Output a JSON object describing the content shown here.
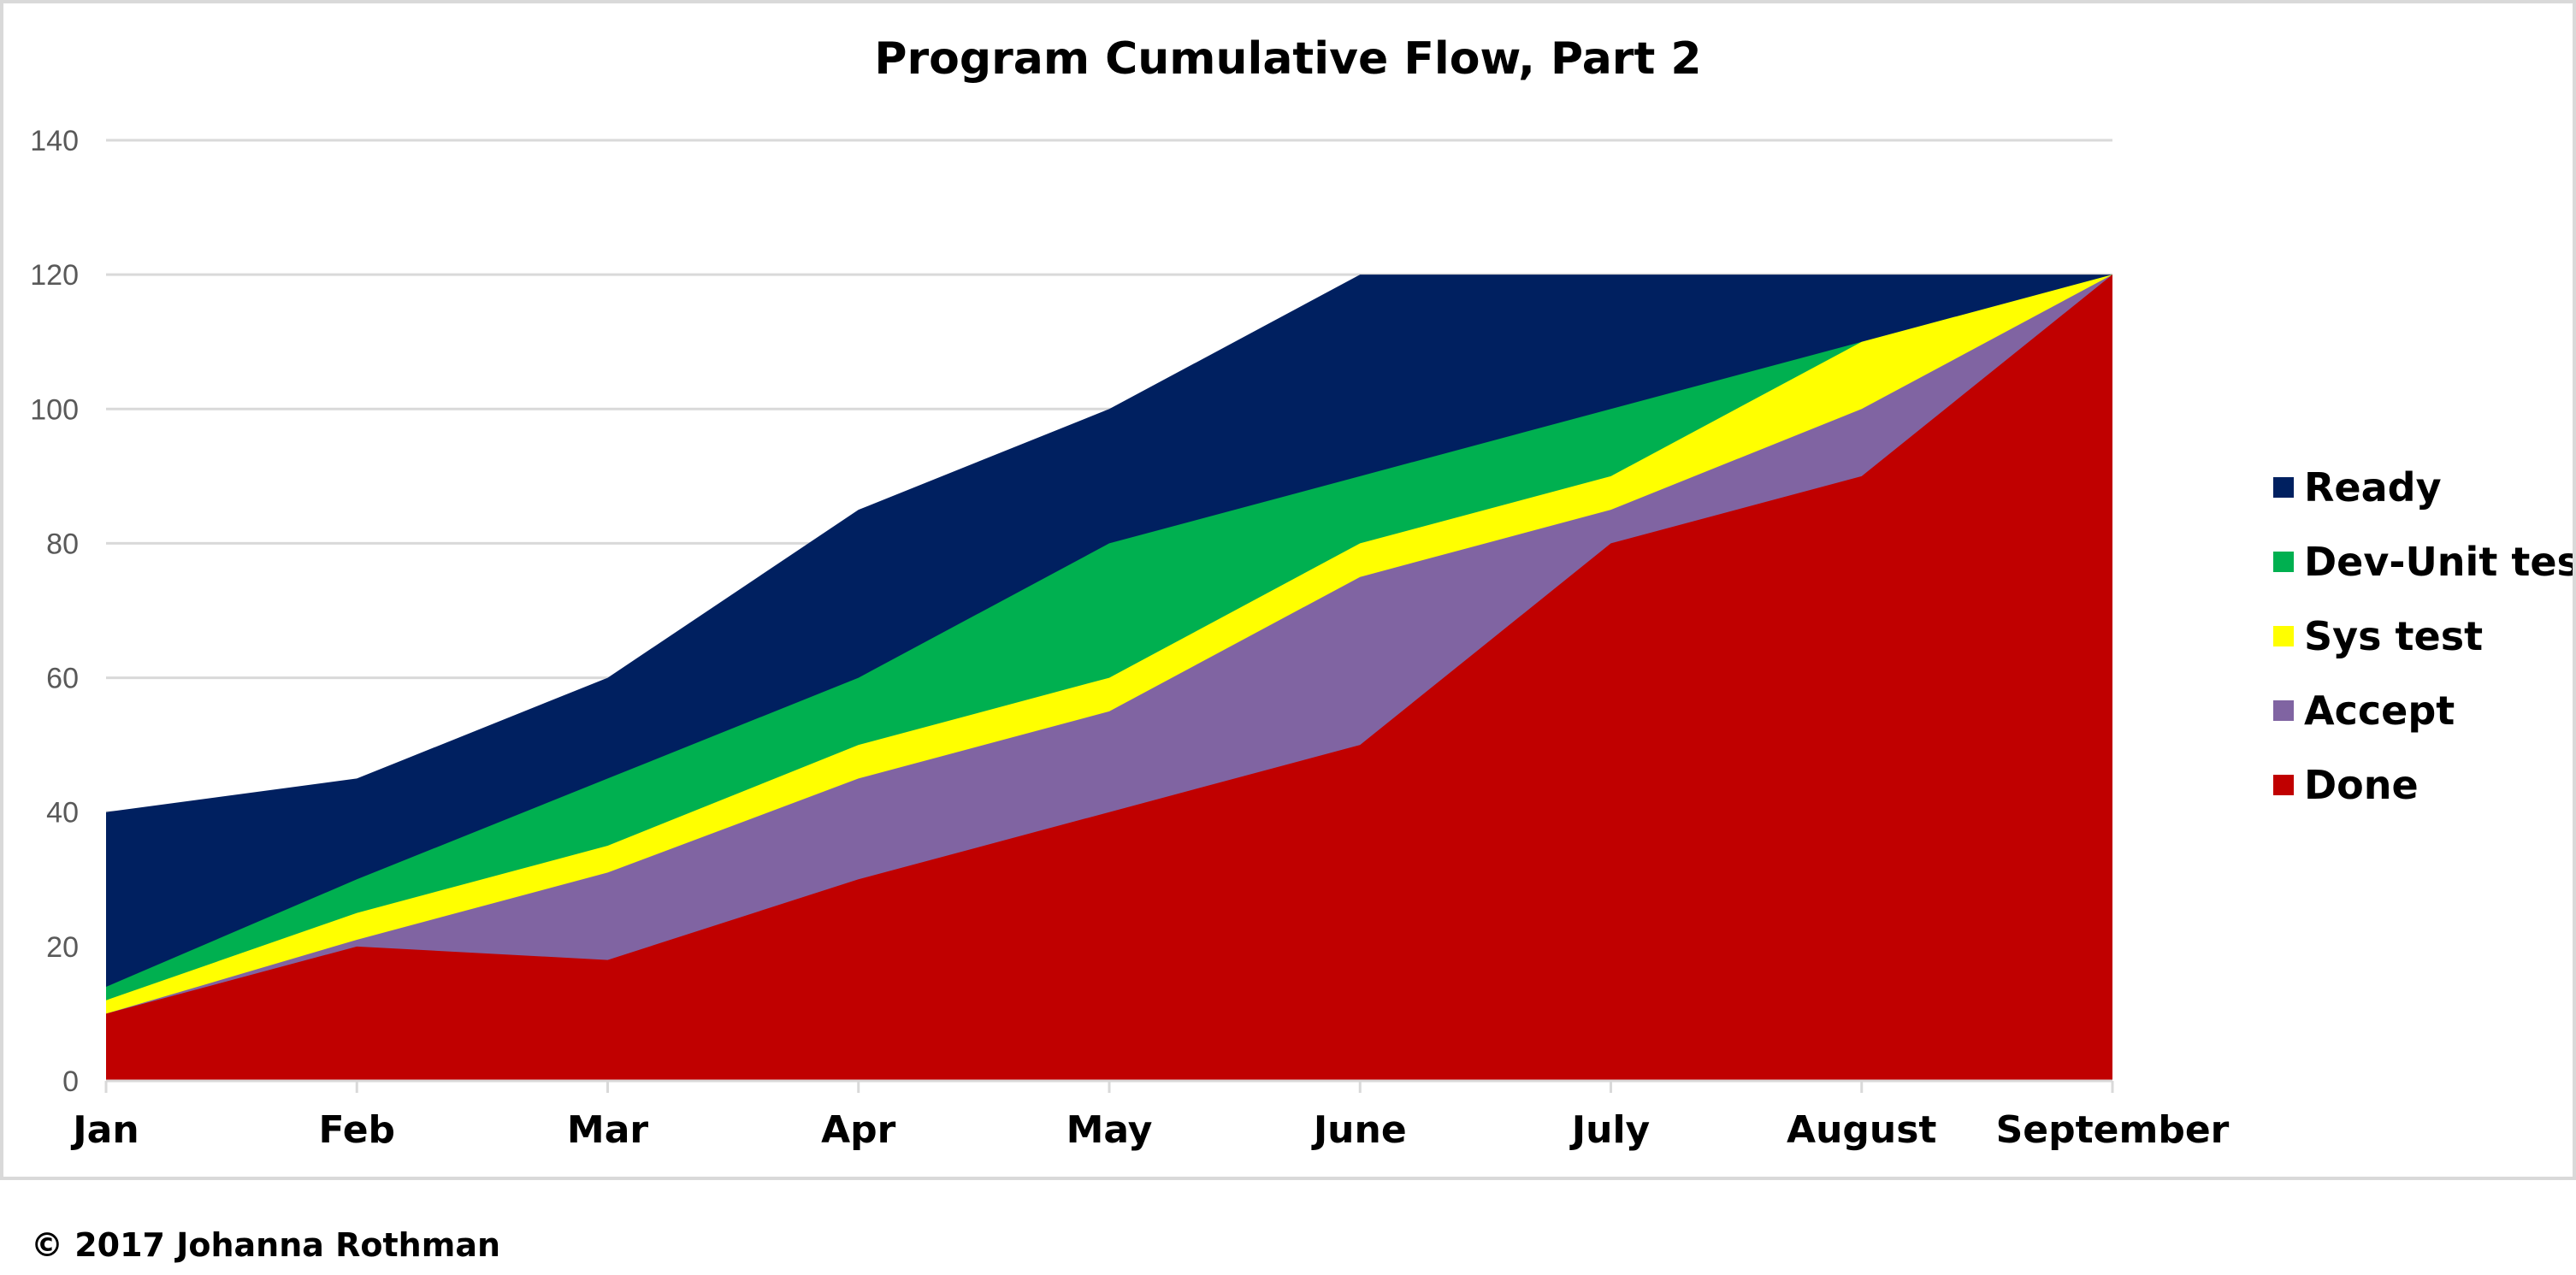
{
  "chart_data": {
    "type": "area",
    "stacked": false,
    "title": "Program Cumulative Flow, Part 2",
    "xlabel": "",
    "ylabel": "",
    "categories": [
      "Jan",
      "Feb",
      "Mar",
      "Apr",
      "May",
      "June",
      "July",
      "August",
      "September"
    ],
    "ylim": [
      0,
      140
    ],
    "yticks": [
      0,
      20,
      40,
      60,
      80,
      100,
      120,
      140
    ],
    "grid": true,
    "legend_position": "right",
    "series": [
      {
        "name": "Ready",
        "color": "#002060",
        "values": [
          40,
          45,
          60,
          85,
          100,
          120,
          120,
          120,
          120
        ]
      },
      {
        "name": "Dev-Unit test",
        "color": "#00B050",
        "values": [
          14,
          30,
          45,
          60,
          80,
          90,
          100,
          110,
          120
        ]
      },
      {
        "name": "Sys test",
        "color": "#FFFF00",
        "values": [
          12,
          25,
          35,
          50,
          60,
          80,
          90,
          110,
          120
        ]
      },
      {
        "name": "Accept",
        "color": "#8064A2",
        "values": [
          10,
          21,
          31,
          45,
          55,
          75,
          85,
          100,
          120
        ]
      },
      {
        "name": "Done",
        "color": "#C00000",
        "values": [
          10,
          20,
          18,
          30,
          40,
          50,
          80,
          90,
          120
        ]
      }
    ]
  },
  "footer": {
    "copyright": "© 2017 Johanna Rothman"
  }
}
